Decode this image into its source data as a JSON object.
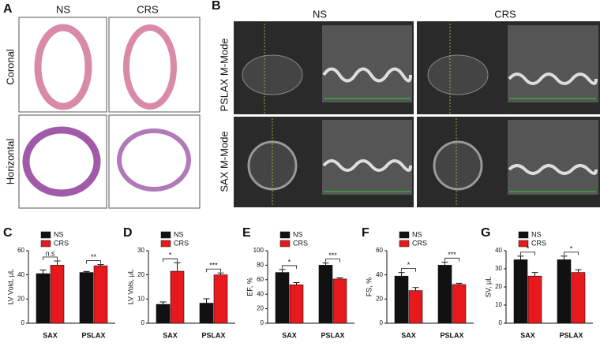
{
  "panels": {
    "a": {
      "label": "A",
      "columns": [
        "NS",
        "CRS"
      ],
      "rows": [
        "Coronal",
        "Horizontal"
      ]
    },
    "b": {
      "label": "B",
      "columns": [
        "NS",
        "CRS"
      ],
      "rows": [
        "PSLAX M-Mode",
        "SAX M-Mode"
      ]
    }
  },
  "chart_data": [
    {
      "type": "bar",
      "label": "C",
      "ylabel": "LV Vold, μL",
      "categories": [
        "SAX",
        "PSLAX"
      ],
      "series": [
        {
          "name": "NS",
          "color": "#111111",
          "values": [
            41,
            42
          ],
          "errors": [
            3,
            0.8
          ]
        },
        {
          "name": "CRS",
          "color": "#e8191c",
          "values": [
            48,
            47.5
          ],
          "errors": [
            3.5,
            1
          ]
        }
      ],
      "annotations": [
        "n.s",
        "**"
      ],
      "ylim": [
        0,
        60
      ],
      "yticks": [
        0,
        20,
        40,
        60
      ]
    },
    {
      "type": "bar",
      "label": "D",
      "ylabel": "LV Vols, μL",
      "categories": [
        "SAX",
        "PSLAX"
      ],
      "series": [
        {
          "name": "NS",
          "color": "#111111",
          "values": [
            7.8,
            8.3
          ],
          "errors": [
            1,
            1.8
          ]
        },
        {
          "name": "CRS",
          "color": "#e8191c",
          "values": [
            21.5,
            20
          ],
          "errors": [
            3.5,
            0.8
          ]
        }
      ],
      "annotations": [
        "*",
        "***"
      ],
      "ylim": [
        0,
        30
      ],
      "yticks": [
        0,
        10,
        20,
        30
      ]
    },
    {
      "type": "bar",
      "label": "E",
      "ylabel": "EF, %",
      "categories": [
        "SAX",
        "PSLAX"
      ],
      "series": [
        {
          "name": "NS",
          "color": "#111111",
          "values": [
            70,
            80
          ],
          "errors": [
            4,
            3
          ]
        },
        {
          "name": "CRS",
          "color": "#e8191c",
          "values": [
            53,
            61
          ],
          "errors": [
            3,
            1.5
          ]
        }
      ],
      "annotations": [
        "*",
        "***"
      ],
      "ylim": [
        0,
        100
      ],
      "yticks": [
        0,
        20,
        40,
        60,
        80,
        100
      ]
    },
    {
      "type": "bar",
      "label": "F",
      "ylabel": "FS, %",
      "categories": [
        "SAX",
        "PSLAX"
      ],
      "series": [
        {
          "name": "NS",
          "color": "#111111",
          "values": [
            39,
            48
          ],
          "errors": [
            3,
            2.5
          ]
        },
        {
          "name": "CRS",
          "color": "#e8191c",
          "values": [
            27,
            32
          ],
          "errors": [
            2.5,
            1
          ]
        }
      ],
      "annotations": [
        "*",
        "***"
      ],
      "ylim": [
        0,
        60
      ],
      "yticks": [
        0,
        20,
        40,
        60
      ]
    },
    {
      "type": "bar",
      "label": "G",
      "ylabel": "SV, μL",
      "categories": [
        "SAX",
        "PSLAX"
      ],
      "series": [
        {
          "name": "NS",
          "color": "#111111",
          "values": [
            35,
            35
          ],
          "errors": [
            2,
            2
          ]
        },
        {
          "name": "CRS",
          "color": "#e8191c",
          "values": [
            26,
            28
          ],
          "errors": [
            2,
            1.5
          ]
        }
      ],
      "annotations": [
        "*",
        "*"
      ],
      "ylim": [
        0,
        40
      ],
      "yticks": [
        0,
        10,
        20,
        30,
        40
      ]
    }
  ]
}
